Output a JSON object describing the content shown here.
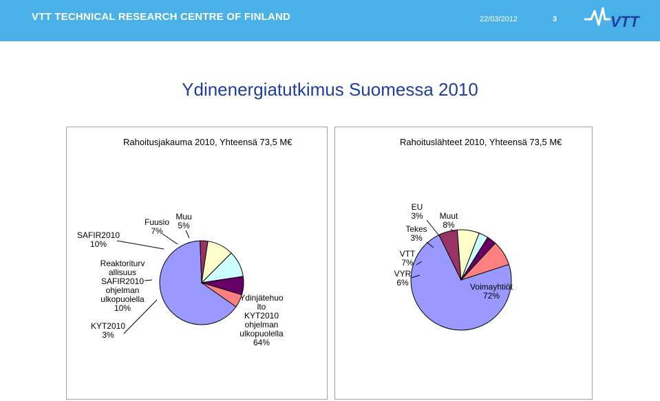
{
  "header": {
    "org": "VTT TECHNICAL RESEARCH CENTRE OF FINLAND",
    "date": "22/03/2012",
    "page": "3",
    "logo_text": "VTT",
    "bg_color": "#4ab0e8"
  },
  "title": "Ydinenergiatutkimus Suomessa 2010",
  "chart_data": [
    {
      "type": "pie",
      "title": "Rahoitusjakauma 2010, Yhteensä 73,5 M€",
      "slices": [
        {
          "label": [
            "Ydinjätehuo",
            "lto",
            "KYT2010",
            "ohjelman",
            "ulkopuolella",
            "64%"
          ],
          "value": 64,
          "color": "#9999ff"
        },
        {
          "label": [
            "KYT2010",
            "3%"
          ],
          "value": 3,
          "color": "#993366"
        },
        {
          "label": [
            "Reaktoriturv",
            "allisuus",
            "SAFIR2010",
            "ohjelman",
            "ulkopuolella",
            "10%"
          ],
          "value": 10,
          "color": "#ffffcc"
        },
        {
          "label": [
            "SAFIR2010",
            "10%"
          ],
          "value": 10,
          "color": "#ccffff"
        },
        {
          "label": [
            "Fuusio",
            "7%"
          ],
          "value": 7,
          "color": "#660066"
        },
        {
          "label": [
            "Muu",
            "5%"
          ],
          "value": 5,
          "color": "#ff8080"
        }
      ]
    },
    {
      "type": "pie",
      "title": "Rahoituslähteet 2010, Yhteensä 73,5 M€",
      "slices": [
        {
          "label": [
            "Voimayhtiöt",
            "72%"
          ],
          "value": 72,
          "color": "#9999ff"
        },
        {
          "label": [
            "VYR",
            "6%"
          ],
          "value": 6,
          "color": "#993366"
        },
        {
          "label": [
            "VTT",
            "7%"
          ],
          "value": 7,
          "color": "#ffffcc"
        },
        {
          "label": [
            "Tekes",
            "3%"
          ],
          "value": 3,
          "color": "#ccffff"
        },
        {
          "label": [
            "EU",
            "3%"
          ],
          "value": 3,
          "color": "#660066"
        },
        {
          "label": [
            "Muut",
            "8%"
          ],
          "value": 8,
          "color": "#ff8080"
        }
      ]
    }
  ]
}
